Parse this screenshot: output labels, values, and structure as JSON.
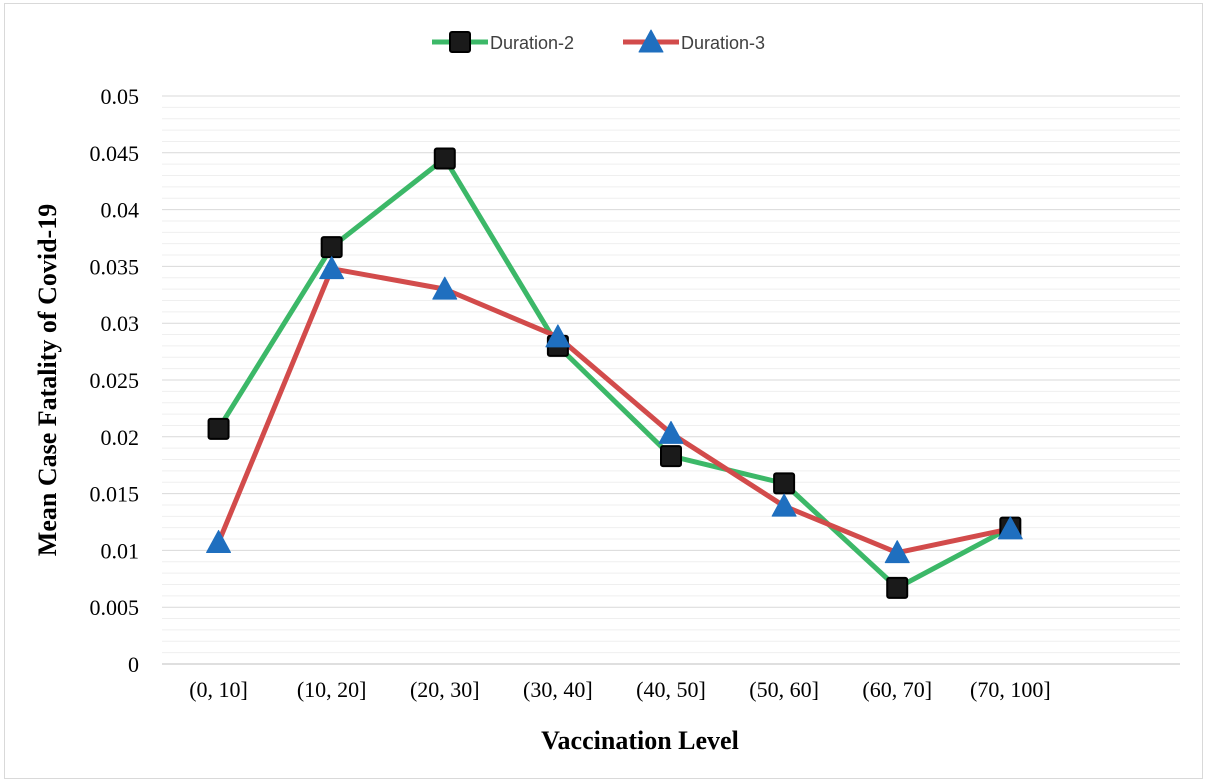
{
  "chart_data": {
    "type": "line",
    "title": "",
    "xlabel": "Vaccination Level",
    "ylabel": "Mean Case Fatality of Covid-19",
    "categories": [
      "(0, 10]",
      "(10, 20]",
      "(20, 30]",
      "(30, 40]",
      "(40, 50]",
      "(50, 60]",
      "(60, 70]",
      "(70, 100]"
    ],
    "ylim": [
      0,
      0.05
    ],
    "yticks": [
      "0",
      "0.005",
      "0.01",
      "0.015",
      "0.02",
      "0.025",
      "0.03",
      "0.035",
      "0.04",
      "0.045",
      "0.05"
    ],
    "grid": true,
    "legend_position": "top-center",
    "series": [
      {
        "name": "Duration-2",
        "color": "#3cb868",
        "marker": "square",
        "marker_color": "#1a1a1a",
        "values": [
          0.0207,
          0.0367,
          0.0445,
          0.028,
          0.0183,
          0.0159,
          0.0067,
          0.012
        ]
      },
      {
        "name": "Duration-3",
        "color": "#d24b4b",
        "marker": "triangle",
        "marker_color": "#1f6fbf",
        "values": [
          0.0107,
          0.0348,
          0.033,
          0.0288,
          0.0203,
          0.0139,
          0.0098,
          0.0119
        ]
      }
    ]
  }
}
